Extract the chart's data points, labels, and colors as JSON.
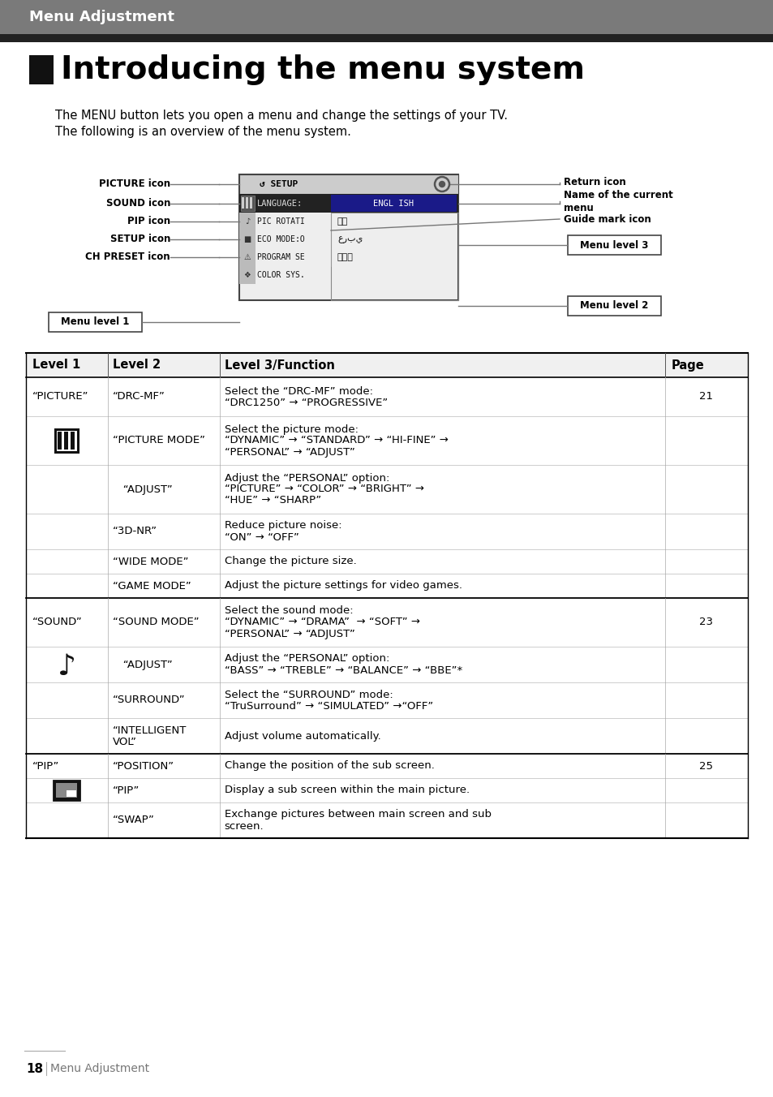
{
  "header_text": "Menu Adjustment",
  "header_bg": "#7a7a7a",
  "header_text_color": "#ffffff",
  "black_bar_color": "#222222",
  "title_text": "Introducing the menu system",
  "intro_line1": "The MENU button lets you open a menu and change the settings of your TV.",
  "intro_line2": "The following is an overview of the menu system.",
  "diagram_left_labels": [
    "PICTURE icon",
    "SOUND icon",
    "PIP icon",
    "SETUP icon",
    "CH PRESET icon"
  ],
  "table_headers": [
    "Level 1",
    "Level 2",
    "Level 3/Function",
    "Page"
  ],
  "footer_page": "18",
  "footer_text": "Menu Adjustment",
  "bg_color": "#ffffff",
  "table_rows": [
    [
      "“PICTURE”",
      "“DRC-MF”",
      "Select the “DRC-MF” mode:\n“DRC1250” → “PROGRESSIVE”",
      "21",
      48
    ],
    [
      "[PIC]",
      "“PICTURE MODE”",
      "Select the picture mode:\n“DYNAMIC” → “STANDARD” → “HI-FINE” →\n“PERSONAL” → “ADJUST”",
      "",
      60
    ],
    [
      "",
      "   “ADJUST”",
      "Adjust the “PERSONAL” option:\n“PICTURE” → “COLOR” → “BRIGHT” →\n“HUE” → “SHARP”",
      "",
      60
    ],
    [
      "",
      "“3D-NR”",
      "Reduce picture noise:\n“ON” → “OFF”",
      "",
      44
    ],
    [
      "",
      "“WIDE MODE”",
      "Change the picture size.",
      "",
      30
    ],
    [
      "",
      "“GAME MODE”",
      "Adjust the picture settings for video games.",
      "",
      30
    ],
    [
      "“SOUND”",
      "“SOUND MODE”",
      "Select the sound mode:\n“DYNAMIC” → “DRAMA”  → “SOFT” →\n“PERSONAL” → “ADJUST”",
      "23",
      60
    ],
    [
      "[SOUND]",
      "   “ADJUST”",
      "Adjust the “PERSONAL” option:\n“BASS” → “TREBLE” → “BALANCE” → “BBE”*",
      "",
      44
    ],
    [
      "",
      "“SURROUND”",
      "Select the “SURROUND” mode:\n“TruSurround” → “SIMULATED” →“OFF”",
      "",
      44
    ],
    [
      "",
      "“INTELLIGENT\nVOL”",
      "Adjust volume automatically.",
      "",
      44
    ],
    [
      "“PIP”",
      "“POSITION”",
      "Change the position of the sub screen.",
      "25",
      30
    ],
    [
      "[PIP]",
      "“PIP”",
      "Display a sub screen within the main picture.",
      "",
      30
    ],
    [
      "",
      "“SWAP”",
      "Exchange pictures between main screen and sub\nscreen.",
      "",
      44
    ]
  ],
  "section_thick_after": [
    5,
    9,
    12
  ]
}
